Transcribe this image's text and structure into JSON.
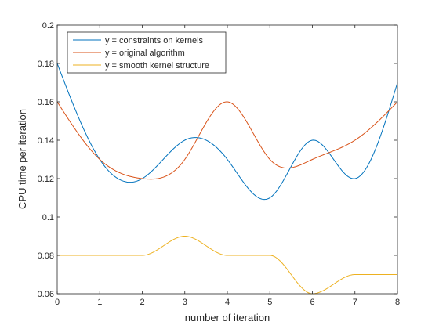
{
  "chart_data": {
    "type": "line",
    "title": "",
    "xlabel": "number of iteration",
    "ylabel": "CPU time per iteration",
    "xlim": [
      0,
      8
    ],
    "ylim": [
      0.06,
      0.2
    ],
    "xticks": [
      0,
      1,
      2,
      3,
      4,
      5,
      6,
      7,
      8
    ],
    "yticks": [
      0.06,
      0.08,
      0.1,
      0.12,
      0.14,
      0.16,
      0.18,
      0.2
    ],
    "xtick_labels": [
      "0",
      "1",
      "2",
      "3",
      "4",
      "5",
      "6",
      "7",
      "8"
    ],
    "ytick_labels": [
      "0.06",
      "0.08",
      "0.1",
      "0.12",
      "0.14",
      "0.16",
      "0.18",
      "0.2"
    ],
    "grid": false,
    "legend_position": "top-left",
    "x": [
      0,
      1,
      2,
      3,
      4,
      5,
      6,
      7,
      8
    ],
    "series": [
      {
        "name": "y = constraints on kernels",
        "color": "#0072BD",
        "values": [
          0.18,
          0.13,
          0.12,
          0.14,
          0.13,
          0.11,
          0.14,
          0.12,
          0.17
        ]
      },
      {
        "name": "y = original algorithm",
        "color": "#D95319",
        "values": [
          0.16,
          0.13,
          0.12,
          0.13,
          0.16,
          0.13,
          0.13,
          0.14,
          0.16
        ]
      },
      {
        "name": "y = smooth kernel structure",
        "color": "#EDB120",
        "values": [
          0.08,
          0.08,
          0.08,
          0.09,
          0.08,
          0.08,
          0.06,
          0.07,
          0.07
        ]
      }
    ]
  }
}
